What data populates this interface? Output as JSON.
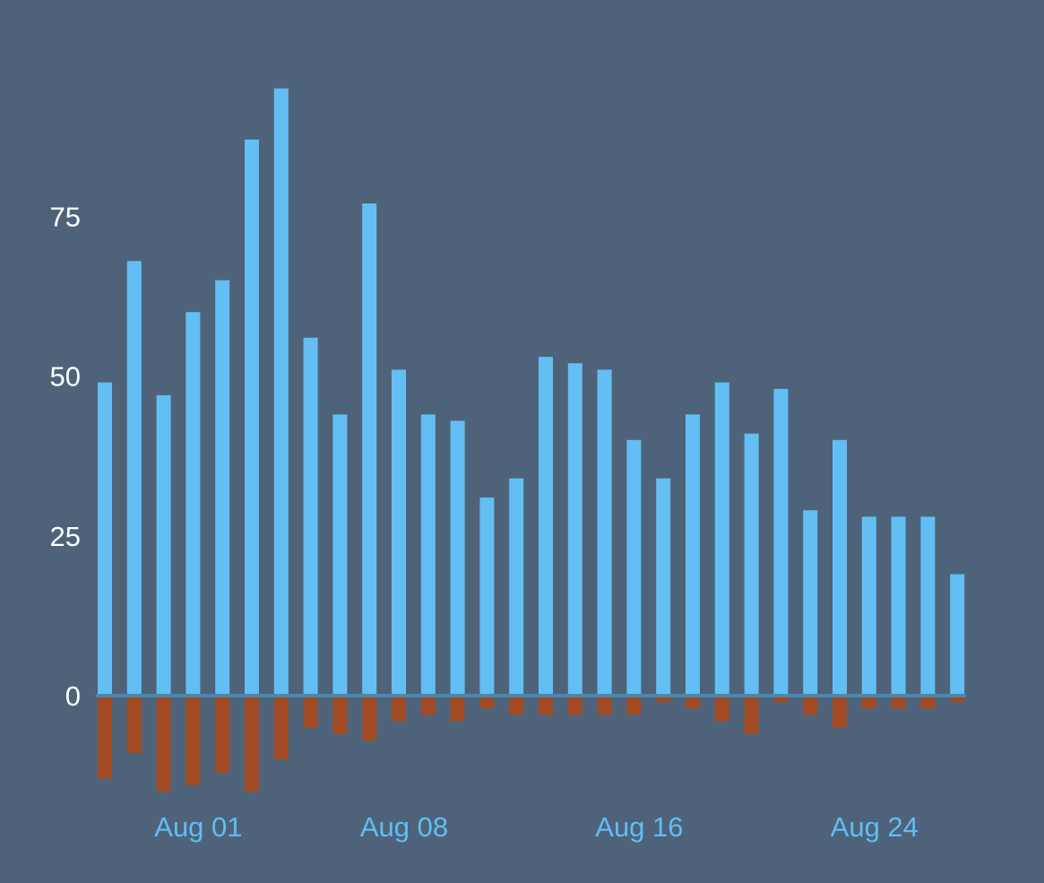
{
  "chart_data": {
    "type": "bar",
    "x": [
      "2020-07-29",
      "2020-07-30",
      "2020-07-31",
      "2020-08-01",
      "2020-08-02",
      "2020-08-03",
      "2020-08-04",
      "2020-08-05",
      "2020-08-06",
      "2020-08-07",
      "2020-08-08",
      "2020-08-09",
      "2020-08-10",
      "2020-08-11",
      "2020-08-12",
      "2020-08-13",
      "2020-08-14",
      "2020-08-15",
      "2020-08-16",
      "2020-08-17",
      "2020-08-18",
      "2020-08-19",
      "2020-08-20",
      "2020-08-21",
      "2020-08-22",
      "2020-08-23",
      "2020-08-24",
      "2020-08-25",
      "2020-08-26",
      "2020-08-27"
    ],
    "series": [
      {
        "values": [
          49,
          68,
          47,
          60,
          65,
          87,
          95,
          56,
          44,
          77,
          51,
          44,
          43,
          31,
          34,
          53,
          52,
          51,
          40,
          34,
          44,
          49,
          41,
          48,
          29,
          40,
          28,
          28,
          28,
          19
        ]
      },
      {
        "values": [
          -13,
          -9,
          -15,
          -14,
          -12,
          -15,
          -10,
          -5,
          -6,
          -7,
          -4,
          -3,
          -4,
          -2,
          -3,
          -3,
          -3,
          -3,
          -3,
          -1,
          -2,
          -4,
          -6,
          -1,
          -3,
          -5,
          -2,
          -2,
          -2,
          -1
        ]
      }
    ],
    "colors": {
      "positive": "#63bef4",
      "negative": "#a14a23",
      "zero_line": "#4a88ad",
      "background": "#4e6379"
    },
    "yticks": [
      0,
      25,
      50,
      75
    ],
    "ytick_labels": [
      "0",
      "25",
      "50",
      "75"
    ],
    "xticks": [
      "2020-08-01",
      "2020-08-08",
      "2020-08-16",
      "2020-08-24"
    ],
    "xtick_labels": [
      "Aug 01",
      "Aug 08",
      "Aug 16",
      "Aug 24"
    ],
    "ylim": [
      -15,
      95
    ],
    "grid": false,
    "legend": "none",
    "title": "",
    "xlabel": "",
    "ylabel": ""
  }
}
